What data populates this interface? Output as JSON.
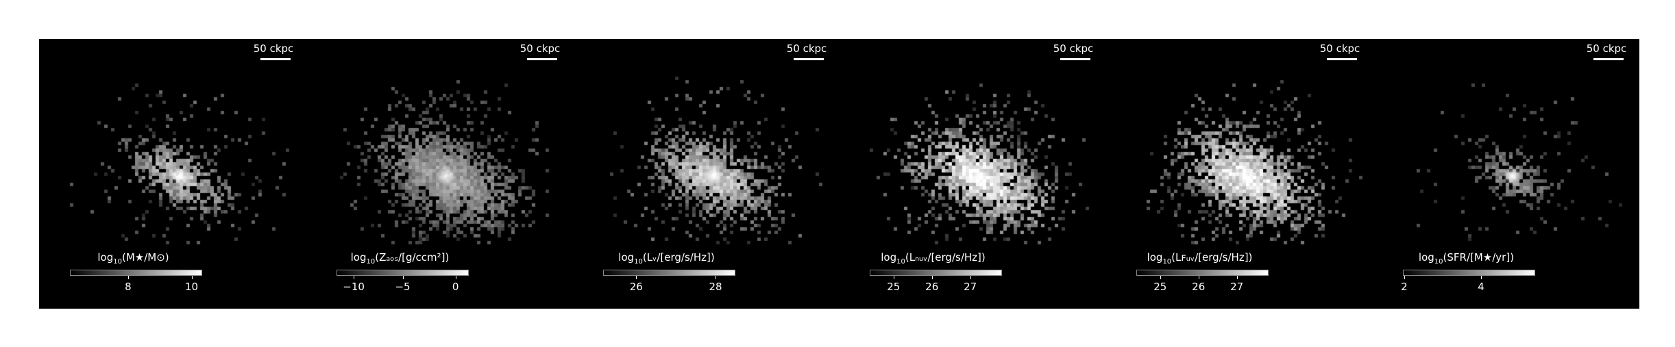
{
  "figure": {
    "scale_bar_label": "50 ckpc",
    "panels": [
      {
        "id": "stellar-mass",
        "label_pre": "log",
        "label_sub": "10",
        "label_post": "(M★/M⊙)",
        "ticks": [
          {
            "value": "8",
            "frac": 0.44
          },
          {
            "value": "10",
            "frac": 0.92
          }
        ],
        "brightness": 0.75,
        "spread": 0.55,
        "halo": 0.35,
        "core": 1.0,
        "seed": 11
      },
      {
        "id": "metallicity",
        "label_pre": "log",
        "label_sub": "10",
        "label_post": "(Zₐₒₛ/[g/ccm²])",
        "ticks": [
          {
            "value": "−10",
            "frac": 0.13
          },
          {
            "value": "−5",
            "frac": 0.5
          },
          {
            "value": "0",
            "frac": 0.9
          }
        ],
        "brightness": 0.6,
        "spread": 0.9,
        "halo": 0.9,
        "core": 0.9,
        "seed": 23
      },
      {
        "id": "luminosity-v",
        "label_pre": "log",
        "label_sub": "10",
        "label_post": "(Lᵥ/[erg/s/Hz])",
        "ticks": [
          {
            "value": "26",
            "frac": 0.25
          },
          {
            "value": "28",
            "frac": 0.85
          }
        ],
        "brightness": 0.8,
        "spread": 0.75,
        "halo": 0.6,
        "core": 1.0,
        "seed": 37
      },
      {
        "id": "luminosity-nuv",
        "label_pre": "log",
        "label_sub": "10",
        "label_post": "(Lₙᵤᵥ/[erg/s/Hz])",
        "ticks": [
          {
            "value": "25",
            "frac": 0.18
          },
          {
            "value": "26",
            "frac": 0.47
          },
          {
            "value": "27",
            "frac": 0.76
          }
        ],
        "brightness": 0.95,
        "spread": 0.85,
        "halo": 0.75,
        "core": 1.0,
        "seed": 51
      },
      {
        "id": "luminosity-fuv",
        "label_pre": "log",
        "label_sub": "10",
        "label_post": "(Lꜰᵤᵥ/[erg/s/Hz])",
        "ticks": [
          {
            "value": "25",
            "frac": 0.18
          },
          {
            "value": "26",
            "frac": 0.47
          },
          {
            "value": "27",
            "frac": 0.76
          }
        ],
        "brightness": 0.95,
        "spread": 0.85,
        "halo": 0.75,
        "core": 1.0,
        "seed": 67
      },
      {
        "id": "sfr",
        "label_pre": "log",
        "label_sub": "10",
        "label_post": "(SFR/[M★/yr])",
        "ticks": [
          {
            "value": "2",
            "frac": 0.01
          },
          {
            "value": "4",
            "frac": 0.59
          }
        ],
        "brightness": 0.55,
        "spread": 0.4,
        "halo": 0.2,
        "core": 1.0,
        "seed": 83
      }
    ]
  }
}
